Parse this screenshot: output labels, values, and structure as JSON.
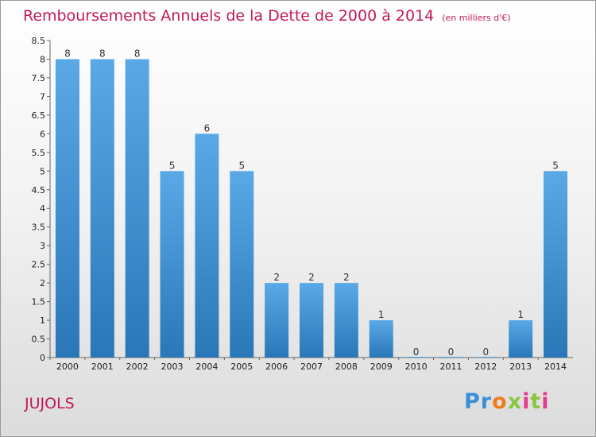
{
  "header": {
    "title": "Remboursements Annuels de la Dette de 2000 à 2014",
    "unit": "(en milliers d'€)"
  },
  "footer": {
    "place": "JUJOLS",
    "logo": "Proxiti"
  },
  "colors": {
    "bar_top": "#5aa9e6",
    "bar_bottom": "#2a77b8",
    "title": "#c2185b"
  },
  "chart_data": {
    "type": "bar",
    "title": "Remboursements Annuels de la Dette de 2000 à 2014",
    "subtitle": "(en milliers d'€)",
    "xlabel": "",
    "ylabel": "",
    "categories": [
      "2000",
      "2001",
      "2002",
      "2003",
      "2004",
      "2005",
      "2006",
      "2007",
      "2008",
      "2009",
      "2010",
      "2011",
      "2012",
      "2013",
      "2014"
    ],
    "values": [
      8,
      8,
      8,
      5,
      6,
      5,
      2,
      2,
      2,
      1,
      0,
      0,
      0,
      1,
      5
    ],
    "data_labels": [
      "8",
      "8",
      "8",
      "5",
      "6",
      "5",
      "2",
      "2",
      "2",
      "1",
      "0",
      "0",
      "0",
      "1",
      "5"
    ],
    "ylim": [
      0,
      8.5
    ],
    "yticks": [
      0,
      0.5,
      1,
      1.5,
      2,
      2.5,
      3,
      3.5,
      4,
      4.5,
      5,
      5.5,
      6,
      6.5,
      7,
      7.5,
      8,
      8.5
    ],
    "ytick_labels": [
      "0",
      "0.5",
      "1",
      "1.5",
      "2",
      "2.5",
      "3",
      "3.5",
      "4",
      "4.5",
      "5",
      "5.5",
      "6",
      "6.5",
      "7",
      "7.5",
      "8",
      "8.5"
    ],
    "grid": false,
    "legend": "none"
  }
}
